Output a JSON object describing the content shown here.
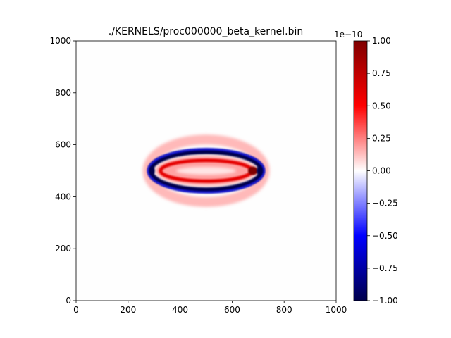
{
  "chart_data": {
    "type": "heatmap",
    "title": "./KERNELS/proc000000_beta_kernel.bin",
    "xlabel": "",
    "ylabel": "",
    "xlim": [
      0,
      1000
    ],
    "ylim": [
      0,
      1000
    ],
    "x_ticks": [
      "0",
      "200",
      "400",
      "600",
      "800",
      "1000"
    ],
    "y_ticks": [
      "0",
      "200",
      "400",
      "600",
      "800",
      "1000"
    ],
    "x_tick_values": [
      0,
      200,
      400,
      600,
      800,
      1000
    ],
    "y_tick_values": [
      0,
      200,
      400,
      600,
      800,
      1000
    ],
    "grid": false,
    "colormap": "seismic",
    "colormap_stops": [
      "#00004c",
      "#0000ff",
      "#ffffff",
      "#ff0000",
      "#7f0000"
    ],
    "colorbar": {
      "range": [
        -1.0,
        1.0
      ],
      "scale_label": "1e−10",
      "ticks": [
        "1.00",
        "0.75",
        "0.50",
        "0.25",
        "0.00",
        "−0.25",
        "−0.50",
        "−0.75",
        "−1.00"
      ],
      "tick_values": [
        1.0,
        0.75,
        0.5,
        0.25,
        0.0,
        -0.25,
        -0.5,
        -0.75,
        -1.0
      ]
    },
    "features": {
      "outer_red_ring": {
        "center": [
          500,
          500
        ],
        "semi_axes": [
          225,
          120
        ],
        "value": 0.25
      },
      "blue_ring": {
        "center": [
          500,
          500
        ],
        "semi_axes": [
          215,
          75
        ],
        "value": -1.0
      },
      "inner_red_lens": {
        "center": [
          500,
          500
        ],
        "semi_axes": [
          175,
          40
        ],
        "value": 0.6
      },
      "right_tip_dark_red": {
        "x": 680,
        "y": 500,
        "value": 1.0
      }
    }
  }
}
